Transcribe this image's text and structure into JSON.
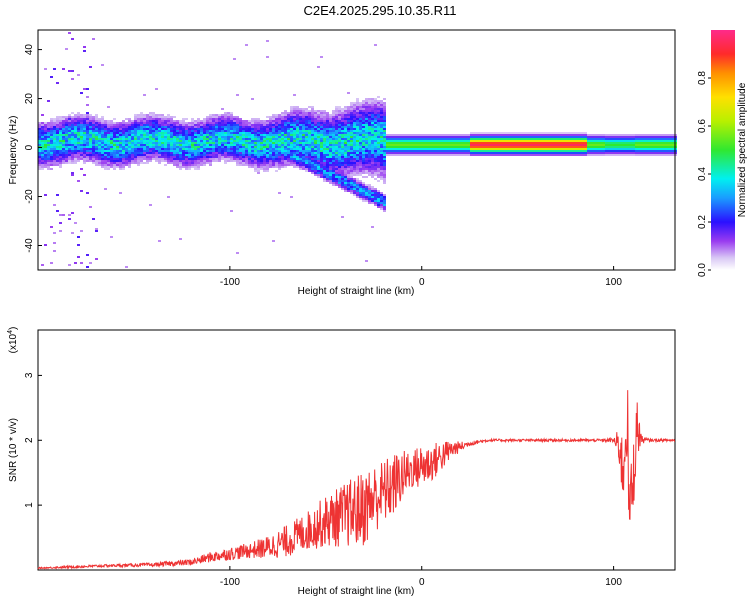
{
  "title": "C2E4.2025.295.10.35.R11",
  "chart_data": [
    {
      "type": "heatmap",
      "xlabel": "Height of straight line (km)",
      "ylabel": "Frequency (Hz)",
      "xlim": [
        -200,
        132
      ],
      "ylim": [
        -50,
        48
      ],
      "xticks": [
        -100,
        0,
        100
      ],
      "yticks": [
        -40,
        -20,
        0,
        20,
        40
      ],
      "xtick_labels": [
        "-100",
        "0",
        "100"
      ],
      "ytick_labels": [
        "-40",
        "-20",
        "0",
        "20",
        "40"
      ],
      "colorbar": {
        "label": "Normalized spectral amplitude",
        "range": [
          0,
          1
        ],
        "ticks": [
          "0.0",
          "0.2",
          "0.4",
          "0.6",
          "0.8"
        ]
      },
      "description_bands": [
        {
          "x_range": [
            -200,
            -20
          ],
          "center_hz": 3,
          "spread_hz": 6,
          "amplitude": 0.35
        },
        {
          "x_range": [
            -20,
            132
          ],
          "center_hz": 1.5,
          "spread_hz": 2,
          "amplitude": 0.9
        }
      ]
    },
    {
      "type": "line",
      "xlabel": "Height of straight line (km)",
      "ylabel": "SNR (10 * v/v)",
      "y_multiplier": "(x10",
      "y_multiplier_exp": "4",
      "xlim": [
        -200,
        132
      ],
      "ylim": [
        0,
        3.7
      ],
      "xticks": [
        -100,
        0,
        100
      ],
      "yticks": [
        1,
        2,
        3
      ],
      "xtick_labels": [
        "-100",
        "0",
        "100"
      ],
      "ytick_labels": [
        "1",
        "2",
        "3"
      ],
      "series_color": "#ee3333",
      "series": [
        {
          "name": "SNR",
          "x": [
            -200,
            -180,
            -160,
            -140,
            -120,
            -110,
            -100,
            -90,
            -80,
            -70,
            -60,
            -50,
            -40,
            -30,
            -25,
            -20,
            -15,
            -10,
            -5,
            0,
            5,
            10,
            15,
            20,
            25,
            30,
            35,
            40,
            50,
            60,
            70,
            80,
            90,
            95,
            100,
            103,
            105,
            107,
            108,
            110,
            112,
            115,
            120,
            132
          ],
          "values": [
            0.03,
            0.05,
            0.07,
            0.08,
            0.12,
            0.2,
            0.25,
            0.3,
            0.35,
            0.45,
            0.6,
            0.75,
            0.85,
            0.95,
            1.1,
            1.2,
            1.3,
            1.45,
            1.55,
            1.6,
            1.65,
            1.75,
            1.85,
            1.9,
            1.95,
            1.98,
            2.0,
            2.0,
            2.0,
            2.0,
            2.0,
            2.0,
            2.0,
            2.0,
            2.0,
            1.9,
            1.5,
            2.6,
            0.9,
            1.3,
            2.2,
            2.0,
            2.0,
            2.0
          ],
          "noise_amplitude": [
            0.01,
            0.02,
            0.02,
            0.03,
            0.05,
            0.08,
            0.1,
            0.12,
            0.18,
            0.25,
            0.3,
            0.4,
            0.5,
            0.6,
            0.55,
            0.5,
            0.5,
            0.4,
            0.3,
            0.35,
            0.3,
            0.25,
            0.15,
            0.08,
            0.04,
            0.03,
            0.02,
            0.02,
            0.02,
            0.02,
            0.02,
            0.02,
            0.02,
            0.02,
            0.04,
            0.3,
            0.6,
            0.9,
            0.5,
            0.6,
            0.5,
            0.05,
            0.02,
            0.02
          ]
        }
      ]
    }
  ]
}
